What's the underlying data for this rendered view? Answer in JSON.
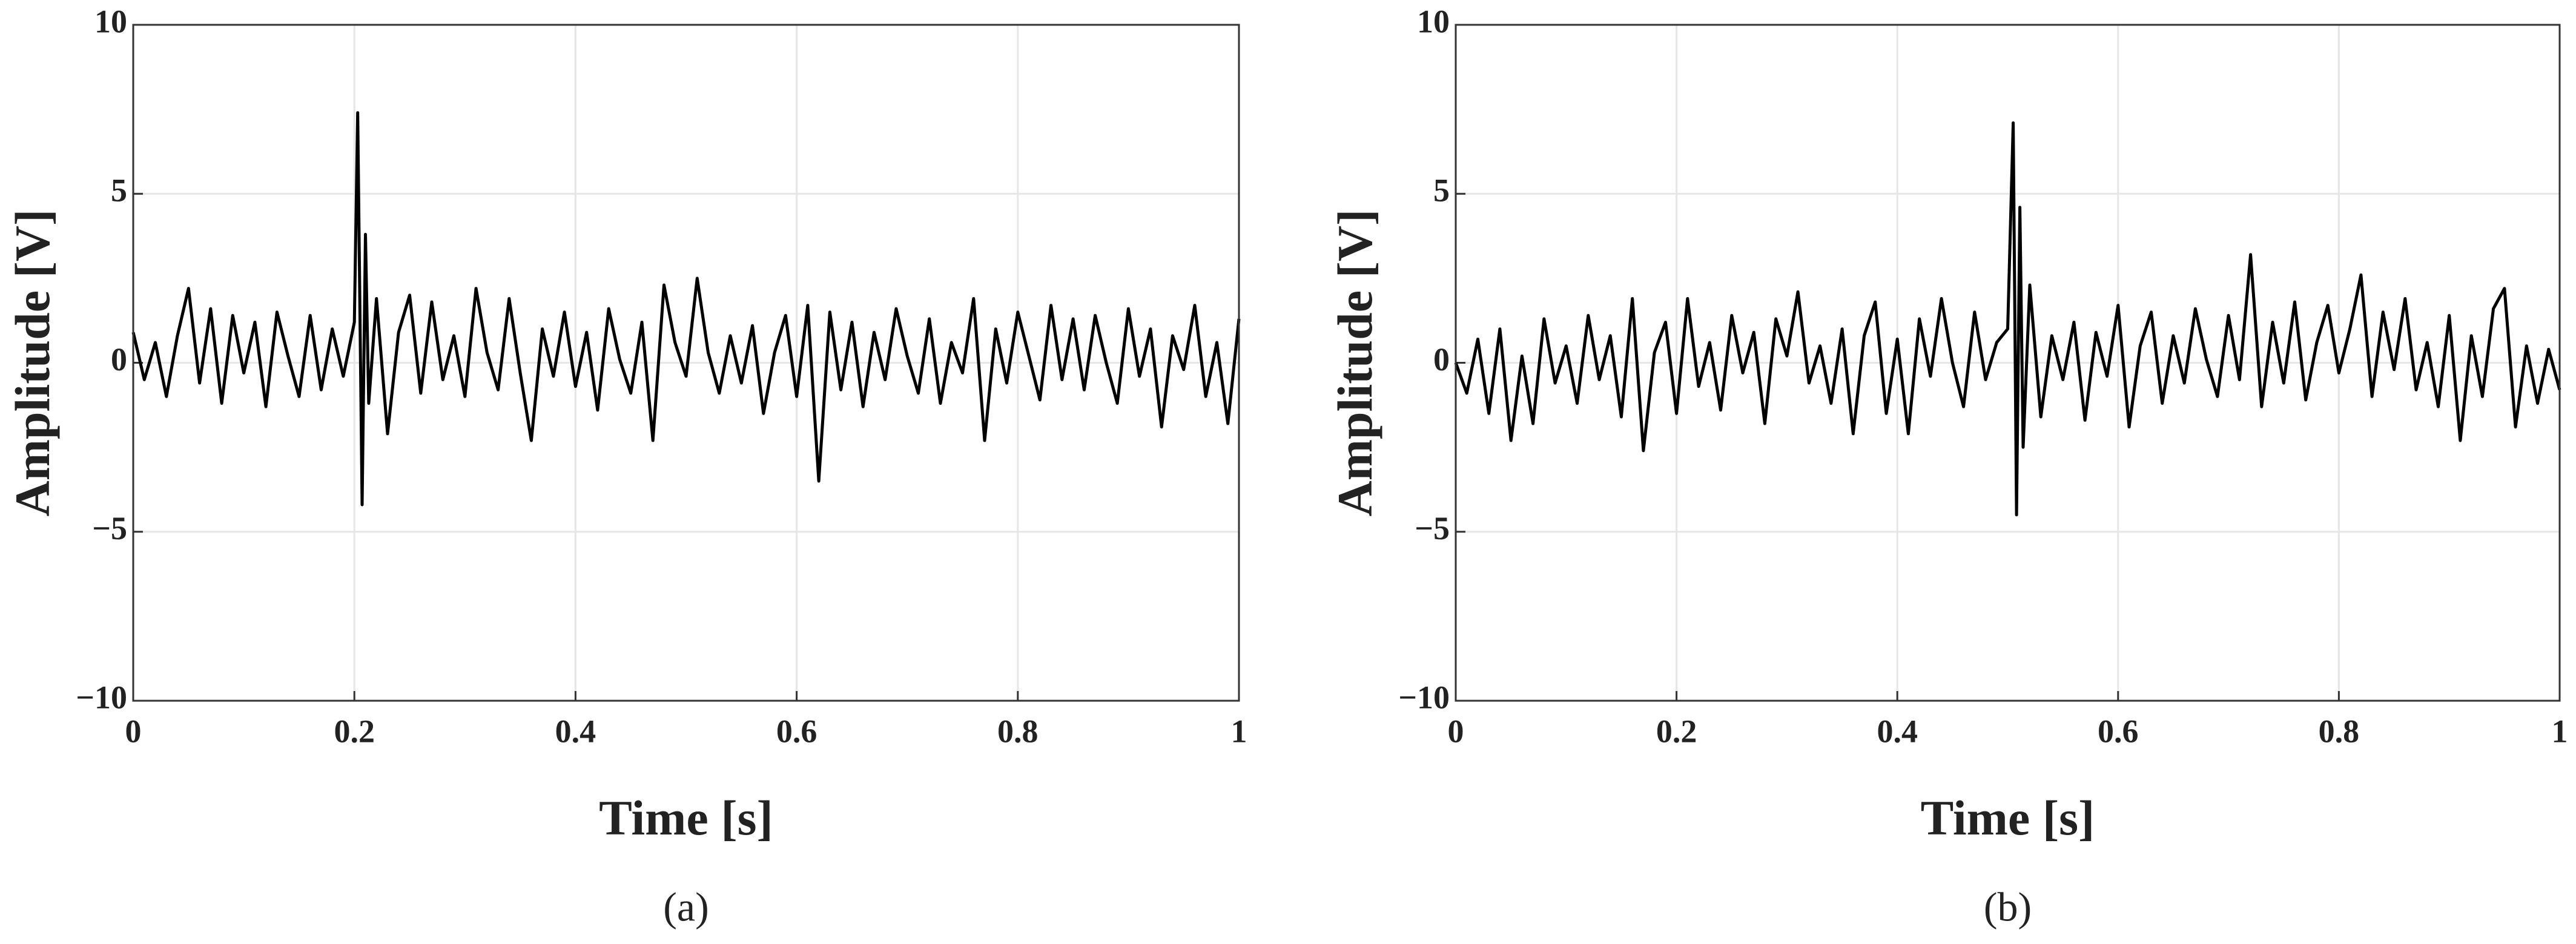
{
  "chart_data": [
    {
      "type": "line",
      "xlabel": "Time [s]",
      "ylabel": "Amplitude [V]",
      "caption": "(a)",
      "color": "#000000",
      "grid": true,
      "xlim": [
        0,
        1
      ],
      "ylim": [
        -10,
        10
      ],
      "xticks": [
        0,
        0.2,
        0.4,
        0.6,
        0.8,
        1
      ],
      "yticks": [
        {
          "value": -10,
          "label": "−10"
        },
        {
          "value": -5,
          "label": "−5"
        },
        0,
        5,
        10
      ],
      "x": [
        0,
        0.01,
        0.02,
        0.03,
        0.04,
        0.05,
        0.06,
        0.07,
        0.08,
        0.09,
        0.1,
        0.11,
        0.12,
        0.13,
        0.14,
        0.15,
        0.16,
        0.17,
        0.18,
        0.19,
        0.2,
        0.203,
        0.207,
        0.21,
        0.213,
        0.22,
        0.23,
        0.24,
        0.25,
        0.26,
        0.27,
        0.28,
        0.29,
        0.3,
        0.31,
        0.32,
        0.33,
        0.34,
        0.35,
        0.36,
        0.37,
        0.38,
        0.39,
        0.4,
        0.41,
        0.42,
        0.43,
        0.44,
        0.45,
        0.46,
        0.47,
        0.48,
        0.49,
        0.5,
        0.51,
        0.52,
        0.53,
        0.54,
        0.55,
        0.56,
        0.57,
        0.58,
        0.59,
        0.6,
        0.61,
        0.62,
        0.63,
        0.64,
        0.65,
        0.66,
        0.67,
        0.68,
        0.69,
        0.7,
        0.71,
        0.72,
        0.73,
        0.74,
        0.75,
        0.76,
        0.77,
        0.78,
        0.79,
        0.8,
        0.81,
        0.82,
        0.83,
        0.84,
        0.85,
        0.86,
        0.87,
        0.88,
        0.89,
        0.9,
        0.91,
        0.92,
        0.93,
        0.94,
        0.95,
        0.96,
        0.97,
        0.98,
        0.99,
        1
      ],
      "values": [
        0.9,
        -0.5,
        0.6,
        -1.0,
        0.8,
        2.2,
        -0.6,
        1.6,
        -1.2,
        1.4,
        -0.3,
        1.2,
        -1.3,
        1.5,
        0.2,
        -1.0,
        1.4,
        -0.8,
        1.0,
        -0.4,
        1.2,
        7.4,
        -4.2,
        3.8,
        -1.2,
        1.9,
        -2.1,
        0.9,
        2.0,
        -0.9,
        1.8,
        -0.5,
        0.8,
        -1.0,
        2.2,
        0.3,
        -0.8,
        1.9,
        -0.3,
        -2.3,
        1.0,
        -0.4,
        1.5,
        -0.7,
        0.9,
        -1.4,
        1.6,
        0.1,
        -0.9,
        1.2,
        -2.3,
        2.3,
        0.6,
        -0.4,
        2.5,
        0.3,
        -0.9,
        0.8,
        -0.6,
        1.1,
        -1.5,
        0.3,
        1.4,
        -1.0,
        1.7,
        -3.5,
        1.5,
        -0.8,
        1.2,
        -1.3,
        0.9,
        -0.5,
        1.6,
        0.2,
        -0.9,
        1.3,
        -1.2,
        0.6,
        -0.3,
        1.9,
        -2.3,
        1.0,
        -0.6,
        1.5,
        0.2,
        -1.1,
        1.7,
        -0.5,
        1.3,
        -0.8,
        1.4,
        0.0,
        -1.2,
        1.6,
        -0.4,
        1.0,
        -1.9,
        0.8,
        -0.2,
        1.7,
        -1.0,
        0.6,
        -1.8,
        1.3
      ]
    },
    {
      "type": "line",
      "xlabel": "Time [s]",
      "ylabel": "Amplitude [V]",
      "caption": "(b)",
      "color": "#000000",
      "grid": true,
      "xlim": [
        0,
        1
      ],
      "ylim": [
        -10,
        10
      ],
      "xticks": [
        0,
        0.2,
        0.4,
        0.6,
        0.8,
        1
      ],
      "yticks": [
        {
          "value": -10,
          "label": "−10"
        },
        {
          "value": -5,
          "label": "−5"
        },
        0,
        5,
        10
      ],
      "x": [
        0,
        0.01,
        0.02,
        0.03,
        0.04,
        0.05,
        0.06,
        0.07,
        0.08,
        0.09,
        0.1,
        0.11,
        0.12,
        0.13,
        0.14,
        0.15,
        0.16,
        0.17,
        0.18,
        0.19,
        0.2,
        0.21,
        0.22,
        0.23,
        0.24,
        0.25,
        0.26,
        0.27,
        0.28,
        0.29,
        0.3,
        0.31,
        0.32,
        0.33,
        0.34,
        0.35,
        0.36,
        0.37,
        0.38,
        0.39,
        0.4,
        0.41,
        0.42,
        0.43,
        0.44,
        0.45,
        0.46,
        0.47,
        0.48,
        0.49,
        0.5,
        0.505,
        0.508,
        0.511,
        0.514,
        0.52,
        0.53,
        0.54,
        0.55,
        0.56,
        0.57,
        0.58,
        0.59,
        0.6,
        0.61,
        0.62,
        0.63,
        0.64,
        0.65,
        0.66,
        0.67,
        0.68,
        0.69,
        0.7,
        0.71,
        0.72,
        0.73,
        0.74,
        0.75,
        0.76,
        0.77,
        0.78,
        0.79,
        0.8,
        0.81,
        0.82,
        0.83,
        0.84,
        0.85,
        0.86,
        0.87,
        0.88,
        0.89,
        0.9,
        0.91,
        0.92,
        0.93,
        0.94,
        0.95,
        0.96,
        0.97,
        0.98,
        0.99,
        1
      ],
      "values": [
        0.0,
        -0.9,
        0.7,
        -1.5,
        1.0,
        -2.3,
        0.2,
        -1.8,
        1.3,
        -0.6,
        0.5,
        -1.2,
        1.4,
        -0.5,
        0.8,
        -1.6,
        1.9,
        -2.6,
        0.3,
        1.2,
        -1.5,
        1.9,
        -0.7,
        0.6,
        -1.4,
        1.4,
        -0.3,
        0.9,
        -1.8,
        1.3,
        0.2,
        2.1,
        -0.6,
        0.5,
        -1.2,
        1.0,
        -2.1,
        0.8,
        1.8,
        -1.5,
        0.7,
        -2.1,
        1.3,
        -0.4,
        1.9,
        0.0,
        -1.3,
        1.5,
        -0.5,
        0.6,
        1.0,
        7.1,
        -4.5,
        4.6,
        -2.5,
        2.3,
        -1.6,
        0.8,
        -0.5,
        1.2,
        -1.7,
        0.9,
        -0.4,
        1.7,
        -1.9,
        0.5,
        1.5,
        -1.2,
        0.8,
        -0.6,
        1.6,
        0.1,
        -1.0,
        1.4,
        -0.5,
        3.2,
        -1.3,
        1.2,
        -0.6,
        1.8,
        -1.1,
        0.6,
        1.7,
        -0.3,
        1.0,
        2.6,
        -1.0,
        1.5,
        -0.2,
        1.9,
        -0.8,
        0.6,
        -1.3,
        1.4,
        -2.3,
        0.8,
        -1.0,
        1.6,
        2.2,
        -1.9,
        0.5,
        -1.2,
        0.4,
        -0.8
      ]
    }
  ]
}
